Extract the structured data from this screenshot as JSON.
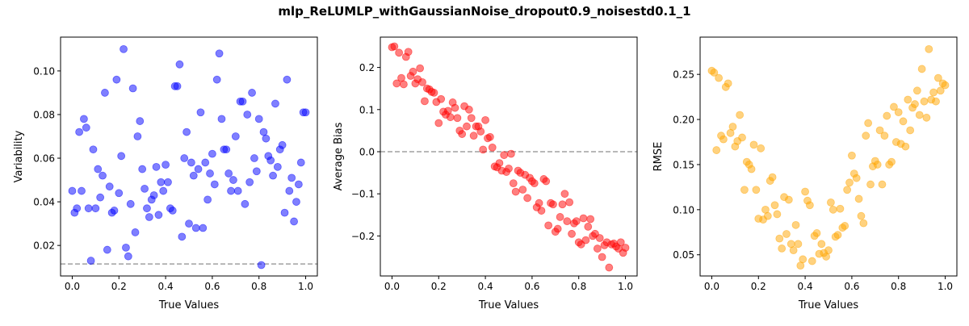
{
  "figure": {
    "title": "mlp_ReLUMLP_withGaussianNoise_dropout0.9_noisestd0.1_1"
  },
  "chart_data": [
    {
      "type": "scatter",
      "name": "variability",
      "xlabel": "True Values",
      "ylabel": "Variability",
      "xlim": [
        -0.05,
        1.05
      ],
      "ylim": [
        0.006,
        0.1155
      ],
      "xticks": [
        0.0,
        0.2,
        0.4,
        0.6,
        0.8,
        1.0
      ],
      "xtick_labels": [
        "0.0",
        "0.2",
        "0.4",
        "0.6",
        "0.8",
        "1.0"
      ],
      "yticks": [
        0.02,
        0.04,
        0.06,
        0.08,
        0.1
      ],
      "ytick_labels": [
        "0.02",
        "0.04",
        "0.06",
        "0.08",
        "0.10"
      ],
      "color": "#0000ff",
      "hline": 0.0115,
      "x": [
        0.0,
        0.01,
        0.02,
        0.03,
        0.04,
        0.05,
        0.06,
        0.07,
        0.08,
        0.09,
        0.1,
        0.11,
        0.12,
        0.13,
        0.14,
        0.15,
        0.16,
        0.17,
        0.18,
        0.19,
        0.2,
        0.21,
        0.22,
        0.23,
        0.24,
        0.25,
        0.26,
        0.27,
        0.28,
        0.29,
        0.3,
        0.31,
        0.32,
        0.33,
        0.34,
        0.35,
        0.36,
        0.37,
        0.38,
        0.39,
        0.4,
        0.41,
        0.42,
        0.43,
        0.44,
        0.45,
        0.46,
        0.47,
        0.48,
        0.49,
        0.5,
        0.51,
        0.52,
        0.53,
        0.54,
        0.55,
        0.56,
        0.57,
        0.58,
        0.59,
        0.6,
        0.61,
        0.62,
        0.63,
        0.64,
        0.65,
        0.66,
        0.67,
        0.68,
        0.69,
        0.7,
        0.71,
        0.72,
        0.73,
        0.74,
        0.75,
        0.76,
        0.77,
        0.78,
        0.79,
        0.8,
        0.81,
        0.82,
        0.83,
        0.84,
        0.85,
        0.86,
        0.87,
        0.88,
        0.89,
        0.9,
        0.91,
        0.92,
        0.93,
        0.94,
        0.95,
        0.96,
        0.97,
        0.98,
        0.99,
        1.0
      ],
      "y": [
        0.045,
        0.035,
        0.037,
        0.072,
        0.045,
        0.078,
        0.074,
        0.037,
        0.013,
        0.064,
        0.037,
        0.055,
        0.042,
        0.052,
        0.09,
        0.018,
        0.047,
        0.035,
        0.036,
        0.096,
        0.044,
        0.061,
        0.11,
        0.019,
        0.015,
        0.039,
        0.092,
        0.026,
        0.07,
        0.077,
        0.055,
        0.046,
        0.037,
        0.033,
        0.041,
        0.043,
        0.056,
        0.034,
        0.049,
        0.045,
        0.057,
        0.049,
        0.037,
        0.036,
        0.093,
        0.093,
        0.103,
        0.024,
        0.06,
        0.072,
        0.03,
        0.058,
        0.052,
        0.028,
        0.055,
        0.081,
        0.028,
        0.058,
        0.041,
        0.053,
        0.062,
        0.048,
        0.096,
        0.108,
        0.078,
        0.064,
        0.064,
        0.053,
        0.045,
        0.05,
        0.07,
        0.045,
        0.086,
        0.086,
        0.039,
        0.08,
        0.049,
        0.09,
        0.06,
        0.054,
        0.078,
        0.011,
        0.072,
        0.069,
        0.061,
        0.059,
        0.052,
        0.085,
        0.056,
        0.064,
        0.066,
        0.035,
        0.096,
        0.045,
        0.051,
        0.031,
        0.04,
        0.048,
        0.058,
        0.081,
        0.081
      ]
    },
    {
      "type": "scatter",
      "name": "bias",
      "xlabel": "True Values",
      "ylabel": "Average Bias",
      "xlim": [
        -0.05,
        1.05
      ],
      "ylim": [
        -0.295,
        0.272
      ],
      "xticks": [
        0.0,
        0.2,
        0.4,
        0.6,
        0.8,
        1.0
      ],
      "xtick_labels": [
        "0.0",
        "0.2",
        "0.4",
        "0.6",
        "0.8",
        "1.0"
      ],
      "yticks": [
        -0.2,
        -0.1,
        0.0,
        0.1,
        0.2
      ],
      "ytick_labels": [
        "−0.2",
        "−0.1",
        "0.0",
        "0.1",
        "0.2"
      ],
      "color": "#ff0000",
      "hline": 0.0,
      "x": [
        0.0,
        0.01,
        0.02,
        0.03,
        0.04,
        0.05,
        0.06,
        0.07,
        0.08,
        0.09,
        0.1,
        0.11,
        0.12,
        0.13,
        0.14,
        0.15,
        0.16,
        0.17,
        0.18,
        0.19,
        0.2,
        0.21,
        0.22,
        0.23,
        0.24,
        0.25,
        0.26,
        0.27,
        0.28,
        0.29,
        0.3,
        0.31,
        0.32,
        0.33,
        0.34,
        0.35,
        0.36,
        0.37,
        0.38,
        0.39,
        0.4,
        0.41,
        0.42,
        0.43,
        0.44,
        0.45,
        0.46,
        0.47,
        0.48,
        0.49,
        0.5,
        0.51,
        0.52,
        0.53,
        0.54,
        0.55,
        0.56,
        0.57,
        0.58,
        0.59,
        0.6,
        0.61,
        0.62,
        0.63,
        0.64,
        0.65,
        0.66,
        0.67,
        0.68,
        0.69,
        0.7,
        0.71,
        0.72,
        0.73,
        0.74,
        0.75,
        0.76,
        0.77,
        0.78,
        0.79,
        0.8,
        0.81,
        0.82,
        0.83,
        0.84,
        0.85,
        0.86,
        0.87,
        0.88,
        0.89,
        0.9,
        0.91,
        0.92,
        0.93,
        0.94,
        0.95,
        0.96,
        0.97,
        0.98,
        0.99,
        1.0
      ],
      "y": [
        0.248,
        0.25,
        0.162,
        0.235,
        0.175,
        0.16,
        0.225,
        0.237,
        0.18,
        0.19,
        0.162,
        0.172,
        0.198,
        0.165,
        0.12,
        0.15,
        0.148,
        0.142,
        0.14,
        0.118,
        0.068,
        0.125,
        0.095,
        0.088,
        0.097,
        0.082,
        0.117,
        0.104,
        0.08,
        0.05,
        0.042,
        0.108,
        0.06,
        0.1,
        0.08,
        0.038,
        0.06,
        0.06,
        0.048,
        0.005,
        0.075,
        0.032,
        0.035,
        0.01,
        -0.035,
        -0.037,
        -0.027,
        -0.045,
        -0.008,
        -0.048,
        -0.04,
        -0.005,
        -0.075,
        -0.095,
        -0.045,
        -0.05,
        -0.09,
        -0.055,
        -0.11,
        -0.062,
        -0.07,
        -0.075,
        -0.132,
        -0.122,
        -0.14,
        -0.065,
        -0.07,
        -0.175,
        -0.122,
        -0.125,
        -0.19,
        -0.183,
        -0.155,
        -0.125,
        -0.1,
        -0.165,
        -0.12,
        -0.195,
        -0.17,
        -0.165,
        -0.215,
        -0.22,
        -0.158,
        -0.21,
        -0.178,
        -0.16,
        -0.2,
        -0.195,
        -0.23,
        -0.205,
        -0.25,
        -0.222,
        -0.215,
        -0.275,
        -0.22,
        -0.218,
        -0.225,
        -0.23,
        -0.215,
        -0.24,
        -0.228
      ]
    },
    {
      "type": "scatter",
      "name": "rmse",
      "xlabel": "True Values",
      "ylabel": "RMSE",
      "xlim": [
        -0.05,
        1.05
      ],
      "ylim": [
        0.0265,
        0.2913
      ],
      "xticks": [
        0.0,
        0.2,
        0.4,
        0.6,
        0.8,
        1.0
      ],
      "xtick_labels": [
        "0.0",
        "0.2",
        "0.4",
        "0.6",
        "0.8",
        "1.0"
      ],
      "yticks": [
        0.05,
        0.1,
        0.15,
        0.2,
        0.25
      ],
      "ytick_labels": [
        "0.05",
        "0.10",
        "0.15",
        "0.20",
        "0.25"
      ],
      "color": "#ffa500",
      "x": [
        0.0,
        0.01,
        0.02,
        0.03,
        0.04,
        0.05,
        0.06,
        0.07,
        0.08,
        0.09,
        0.1,
        0.11,
        0.12,
        0.13,
        0.14,
        0.15,
        0.16,
        0.17,
        0.18,
        0.19,
        0.2,
        0.21,
        0.22,
        0.23,
        0.24,
        0.25,
        0.26,
        0.27,
        0.28,
        0.29,
        0.3,
        0.31,
        0.32,
        0.33,
        0.34,
        0.35,
        0.36,
        0.37,
        0.38,
        0.39,
        0.4,
        0.41,
        0.42,
        0.43,
        0.44,
        0.45,
        0.46,
        0.47,
        0.48,
        0.49,
        0.5,
        0.51,
        0.52,
        0.53,
        0.54,
        0.55,
        0.56,
        0.57,
        0.58,
        0.59,
        0.6,
        0.61,
        0.62,
        0.63,
        0.64,
        0.65,
        0.66,
        0.67,
        0.68,
        0.69,
        0.7,
        0.71,
        0.72,
        0.73,
        0.74,
        0.75,
        0.76,
        0.77,
        0.78,
        0.79,
        0.8,
        0.81,
        0.82,
        0.83,
        0.84,
        0.85,
        0.86,
        0.87,
        0.88,
        0.89,
        0.9,
        0.91,
        0.92,
        0.93,
        0.94,
        0.95,
        0.96,
        0.97,
        0.98,
        0.99,
        1.0
      ],
      "y": [
        0.254,
        0.252,
        0.166,
        0.246,
        0.182,
        0.178,
        0.236,
        0.24,
        0.185,
        0.192,
        0.17,
        0.176,
        0.205,
        0.18,
        0.122,
        0.153,
        0.15,
        0.145,
        0.172,
        0.122,
        0.09,
        0.168,
        0.089,
        0.1,
        0.093,
        0.132,
        0.136,
        0.105,
        0.095,
        0.068,
        0.057,
        0.114,
        0.073,
        0.111,
        0.062,
        0.055,
        0.083,
        0.062,
        0.038,
        0.045,
        0.12,
        0.11,
        0.105,
        0.043,
        0.071,
        0.074,
        0.051,
        0.062,
        0.052,
        0.048,
        0.055,
        0.108,
        0.1,
        0.07,
        0.072,
        0.101,
        0.08,
        0.082,
        0.122,
        0.13,
        0.16,
        0.14,
        0.135,
        0.112,
        0.093,
        0.085,
        0.182,
        0.196,
        0.128,
        0.148,
        0.154,
        0.15,
        0.188,
        0.128,
        0.182,
        0.204,
        0.15,
        0.153,
        0.214,
        0.175,
        0.208,
        0.173,
        0.198,
        0.17,
        0.222,
        0.188,
        0.213,
        0.217,
        0.232,
        0.205,
        0.256,
        0.22,
        0.202,
        0.278,
        0.222,
        0.23,
        0.22,
        0.246,
        0.232,
        0.24,
        0.238
      ]
    }
  ]
}
